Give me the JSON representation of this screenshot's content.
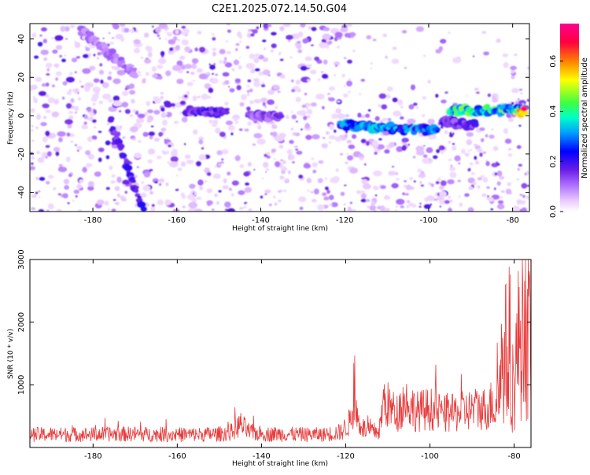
{
  "title": "C2E1.2025.072.14.50.G04",
  "chart_data": [
    {
      "type": "heatmap",
      "xlabel": "Height of straight line (km)",
      "ylabel": "Frequency (Hz)",
      "xlim": [
        -195,
        -76
      ],
      "ylim": [
        -50,
        48
      ],
      "x_ticks": [
        -180,
        -160,
        -140,
        -120,
        -100,
        -80
      ],
      "y_ticks": [
        -40,
        -20,
        0,
        20,
        40
      ],
      "colorbar": {
        "label": "Normalized spectral amplitude",
        "range": [
          0,
          0.75
        ],
        "ticks": [
          0,
          0.2,
          0.4,
          0.6
        ],
        "tick_labels": [
          "0.0",
          "0.2",
          "0.4",
          "0.6"
        ],
        "colors": [
          "#ffffff",
          "#e8c8ff",
          "#b070ff",
          "#6a1fe6",
          "#0000ff",
          "#00a0ff",
          "#00ffc8",
          "#40ff40",
          "#ffff00",
          "#ff8000",
          "#ff0040",
          "#ff0090"
        ]
      },
      "features": [
        {
          "name": "line_1",
          "x_start": -176,
          "x_end": -168,
          "y_start": -2,
          "y_end": -48,
          "amplitude": 0.22
        },
        {
          "name": "line_2",
          "x_start": -183,
          "x_end": -170,
          "y_start": 45,
          "y_end": 22,
          "amplitude": 0.12
        },
        {
          "name": "band_1",
          "x_start": -158,
          "x_end": -148,
          "y_start": 2,
          "y_end": 2,
          "amplitude": 0.2
        },
        {
          "name": "band_2",
          "x_start": -143,
          "x_end": -135,
          "y_start": 0,
          "y_end": 0,
          "amplitude": 0.16
        },
        {
          "name": "band_3",
          "x_start": -121,
          "x_end": -98,
          "y_start": -5,
          "y_end": -8,
          "amplitude": 0.35
        },
        {
          "name": "band_4",
          "x_start": -97,
          "x_end": -89,
          "y_start": -3,
          "y_end": -5,
          "amplitude": 0.2
        },
        {
          "name": "band_5",
          "x_start": -95,
          "x_end": -77,
          "y_start": 3,
          "y_end": 3,
          "amplitude": 0.45
        },
        {
          "name": "peak",
          "x_start": -79,
          "x_end": -77,
          "y_start": 2,
          "y_end": 2,
          "amplitude": 0.72
        }
      ]
    },
    {
      "type": "line",
      "xlabel": "Height of straight line (km)",
      "ylabel": "SNR (10 * v/v)",
      "xlim": [
        -195,
        -76
      ],
      "ylim": [
        0,
        3000
      ],
      "x_ticks": [
        -180,
        -160,
        -140,
        -120,
        -100,
        -80
      ],
      "y_ticks": [
        1000,
        2000,
        3000
      ],
      "line_color": "#e83c3c",
      "series": [
        {
          "name": "SNR",
          "x": [
            -195,
            -190,
            -185,
            -180,
            -175,
            -170,
            -165,
            -160,
            -155,
            -150,
            -147,
            -145,
            -143,
            -140,
            -135,
            -130,
            -125,
            -121,
            -119,
            -118,
            -117,
            -115,
            -112,
            -111,
            -108,
            -106,
            -103,
            -100,
            -97,
            -95,
            -92,
            -89,
            -86,
            -84,
            -83,
            -82,
            -81,
            -80,
            -79,
            -78,
            -77,
            -76
          ],
          "y": [
            250,
            250,
            250,
            250,
            260,
            260,
            250,
            250,
            250,
            260,
            300,
            450,
            300,
            260,
            260,
            250,
            250,
            300,
            500,
            900,
            500,
            300,
            320,
            900,
            650,
            900,
            700,
            750,
            650,
            650,
            700,
            750,
            750,
            1100,
            1800,
            2100,
            1500,
            1400,
            2300,
            2900,
            2600,
            2300
          ]
        }
      ]
    }
  ]
}
